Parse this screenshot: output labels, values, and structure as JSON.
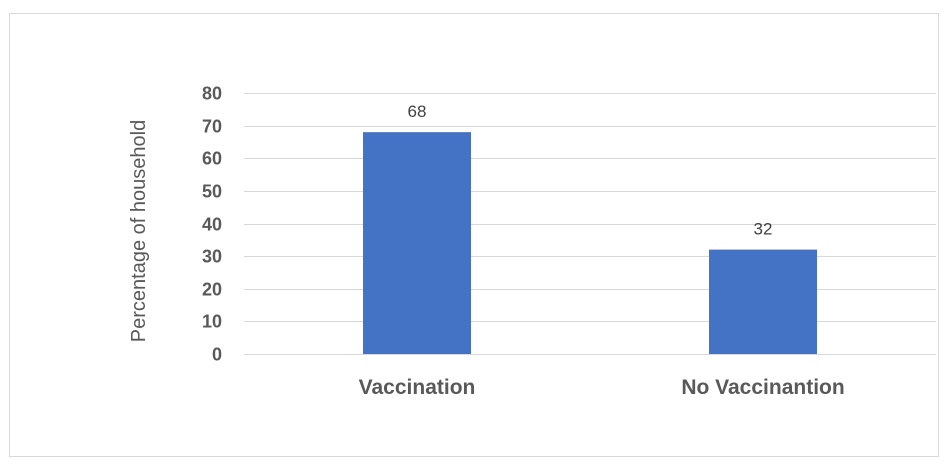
{
  "chart_data": {
    "type": "bar",
    "title": "",
    "xlabel": "",
    "ylabel": "Percentage of household",
    "categories": [
      "Vaccination",
      "No Vaccinantion"
    ],
    "values": [
      68,
      32
    ],
    "data_labels": [
      "68",
      "32"
    ],
    "ylim": [
      0,
      80
    ],
    "yticks": [
      "0",
      "10",
      "20",
      "30",
      "40",
      "50",
      "60",
      "70",
      "80"
    ],
    "grid": true,
    "legend": "none",
    "colors": {
      "bar": "#4472C4",
      "grid": "#d9d9d9",
      "text": "#595959"
    }
  }
}
